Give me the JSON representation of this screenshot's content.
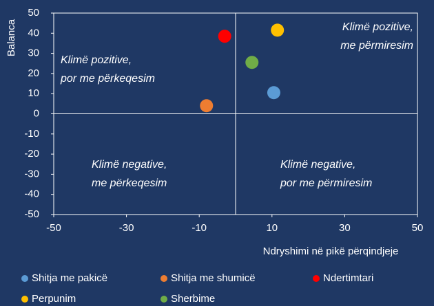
{
  "chart_data": {
    "type": "scatter",
    "xlabel": "Ndryshimi në pikë përqindjeje",
    "ylabel": "Balanca",
    "xlim": [
      -50,
      50
    ],
    "xticks": [
      -50,
      -30,
      -10,
      10,
      30,
      50
    ],
    "ylim": [
      -50,
      50
    ],
    "yticks": [
      -50,
      -40,
      -30,
      -20,
      -10,
      0,
      10,
      20,
      30,
      40,
      50
    ],
    "series": [
      {
        "name": "Shitja me pakicë",
        "color": "#5b9bd5",
        "x": [
          10.5
        ],
        "values": [
          10.5
        ]
      },
      {
        "name": "Shitja me shumicë",
        "color": "#ed7d31",
        "x": [
          -8
        ],
        "values": [
          4
        ]
      },
      {
        "name": "Ndertimtari",
        "color": "#ff0000",
        "x": [
          -3
        ],
        "values": [
          38.5
        ]
      },
      {
        "name": "Perpunim",
        "color": "#ffc000",
        "x": [
          11.5
        ],
        "values": [
          41.5
        ]
      },
      {
        "name": "Sherbime",
        "color": "#70ad47",
        "x": [
          4.5
        ],
        "values": [
          25.5
        ]
      }
    ],
    "annotations": [
      [
        "Klimë pozitive,",
        "me përmiresim"
      ],
      [
        "Klimë pozitive,",
        "por me përkeqesim"
      ],
      [
        "Klimë negative,",
        "me përkeqesim"
      ],
      [
        "Klimë negative,",
        "por me përmiresim"
      ]
    ]
  }
}
